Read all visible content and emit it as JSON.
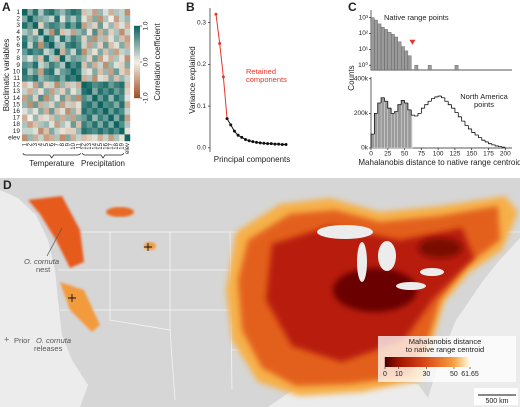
{
  "chart_data": [
    {
      "type": "heatmap",
      "letter": "A",
      "ylabel": "Bioclimatic variables",
      "colorbar_label": "Correlation coefficient",
      "categories": [
        "1",
        "2",
        "3",
        "4",
        "5",
        "6",
        "7",
        "8",
        "9",
        "10",
        "11",
        "12",
        "13",
        "14",
        "15",
        "16",
        "17",
        "18",
        "19",
        "elev"
      ],
      "groups": [
        "Temperature",
        "Precipitation"
      ],
      "clim": [
        -1,
        1
      ],
      "cticks": [
        {
          "value": 1,
          "label": "1.0"
        },
        {
          "value": 0,
          "label": "0.0"
        },
        {
          "value": -1,
          "label": "-1.0"
        }
      ],
      "colormap": [
        "#9c4f1f",
        "#f3efe8",
        "#0d6460"
      ],
      "values": [
        [
          1,
          0.5,
          0.9,
          0.3,
          0.8,
          0.9,
          0.6,
          0.4,
          0.7,
          0.9,
          0.8,
          -0.3,
          0.2,
          -0.5,
          0.4,
          0.1,
          -0.4,
          0.3,
          0.2,
          -0.6
        ],
        [
          0.5,
          1,
          0.6,
          0.5,
          0.4,
          0.2,
          0.9,
          0.1,
          0.6,
          0.3,
          0.7,
          0.1,
          -0.4,
          0.5,
          -0.6,
          0.3,
          0.0,
          -0.5,
          0.2,
          0.4
        ],
        [
          0.9,
          0.6,
          1,
          -0.2,
          0.6,
          0.8,
          0.7,
          0.5,
          0.9,
          0.6,
          0.9,
          -0.5,
          0.3,
          -0.2,
          0.6,
          -0.1,
          0.4,
          -0.3,
          0.1,
          -0.4
        ],
        [
          0.3,
          0.5,
          -0.2,
          1,
          0.3,
          -0.6,
          0.8,
          -0.3,
          0.2,
          -0.5,
          0.4,
          0.6,
          -0.1,
          0.7,
          -0.4,
          0.5,
          -0.2,
          0.3,
          -0.6,
          0.2
        ],
        [
          0.8,
          0.4,
          0.6,
          0.3,
          1,
          0.7,
          0.2,
          0.9,
          0.4,
          0.8,
          0.6,
          -0.2,
          0.5,
          -0.6,
          0.3,
          -0.4,
          0.1,
          0.4,
          -0.3,
          -0.5
        ],
        [
          0.9,
          0.2,
          0.8,
          -0.6,
          0.7,
          1,
          0.4,
          0.3,
          0.8,
          0.9,
          0.7,
          0.2,
          -0.5,
          0.4,
          -0.2,
          0.6,
          -0.3,
          0.1,
          0.5,
          -0.4
        ],
        [
          0.6,
          0.9,
          0.7,
          0.8,
          0.2,
          0.4,
          1,
          -0.4,
          0.6,
          0.2,
          0.8,
          -0.6,
          0.3,
          -0.1,
          0.5,
          -0.3,
          0.4,
          -0.5,
          0.2,
          0.3
        ],
        [
          0.4,
          0.1,
          0.5,
          -0.3,
          0.9,
          0.3,
          -0.4,
          1,
          0.3,
          0.6,
          0.5,
          0.4,
          -0.2,
          0.6,
          -0.5,
          0.1,
          -0.4,
          0.3,
          -0.1,
          -0.6
        ],
        [
          0.7,
          0.6,
          0.9,
          0.2,
          0.4,
          0.8,
          0.6,
          0.3,
          1,
          0.7,
          0.9,
          -0.3,
          0.5,
          -0.4,
          0.2,
          -0.6,
          0.4,
          0.1,
          -0.2,
          0.5
        ],
        [
          0.9,
          0.3,
          0.6,
          -0.5,
          0.8,
          0.9,
          0.2,
          0.6,
          0.7,
          1,
          0.8,
          0.2,
          -0.1,
          0.5,
          -0.3,
          0.4,
          -0.5,
          0.6,
          -0.2,
          -0.4
        ],
        [
          0.8,
          0.7,
          0.9,
          0.4,
          0.6,
          0.7,
          0.8,
          0.5,
          0.9,
          0.8,
          1,
          -0.4,
          0.3,
          -0.6,
          0.1,
          -0.2,
          0.5,
          -0.3,
          0.4,
          0.2
        ],
        [
          -0.3,
          0.1,
          -0.5,
          0.6,
          -0.2,
          0.2,
          -0.6,
          0.4,
          -0.3,
          0.2,
          -0.4,
          1,
          0.9,
          0.7,
          0.8,
          0.9,
          0.6,
          0.8,
          0.9,
          -0.3
        ],
        [
          0.2,
          -0.4,
          0.3,
          -0.1,
          0.5,
          -0.5,
          0.3,
          -0.2,
          0.5,
          -0.1,
          0.3,
          0.9,
          1,
          0.5,
          0.9,
          0.7,
          0.9,
          0.6,
          0.8,
          -0.2
        ],
        [
          -0.5,
          0.5,
          -0.2,
          0.7,
          -0.6,
          0.4,
          -0.1,
          0.6,
          -0.4,
          0.5,
          -0.6,
          0.7,
          0.5,
          1,
          0.6,
          0.9,
          0.4,
          0.9,
          0.7,
          0.1
        ],
        [
          0.4,
          -0.6,
          0.6,
          -0.4,
          0.3,
          -0.2,
          0.5,
          -0.5,
          0.2,
          -0.3,
          0.1,
          0.8,
          0.9,
          0.6,
          1,
          0.7,
          0.8,
          0.5,
          0.9,
          -0.4
        ],
        [
          0.1,
          0.3,
          -0.1,
          0.5,
          -0.4,
          0.6,
          -0.3,
          0.1,
          -0.6,
          0.4,
          -0.2,
          0.9,
          0.7,
          0.9,
          0.7,
          1,
          0.6,
          0.9,
          0.7,
          0.2
        ],
        [
          -0.4,
          0.0,
          0.4,
          -0.2,
          0.1,
          -0.3,
          0.4,
          -0.4,
          0.4,
          -0.5,
          0.5,
          0.6,
          0.9,
          0.4,
          0.8,
          0.6,
          1,
          0.5,
          0.9,
          -0.5
        ],
        [
          0.3,
          -0.5,
          -0.3,
          0.3,
          0.4,
          0.1,
          -0.5,
          0.3,
          0.1,
          0.6,
          -0.3,
          0.8,
          0.6,
          0.9,
          0.5,
          0.9,
          0.5,
          1,
          0.7,
          0.3
        ],
        [
          0.2,
          0.2,
          0.1,
          -0.6,
          -0.3,
          0.5,
          0.2,
          -0.1,
          -0.2,
          -0.2,
          0.4,
          0.9,
          0.8,
          0.7,
          0.9,
          0.7,
          0.9,
          0.7,
          1,
          -0.1
        ],
        [
          -0.6,
          0.4,
          -0.4,
          0.2,
          -0.5,
          -0.4,
          0.3,
          -0.6,
          0.5,
          -0.4,
          0.2,
          -0.3,
          -0.2,
          0.1,
          -0.4,
          0.2,
          -0.5,
          0.3,
          -0.1,
          1
        ]
      ]
    },
    {
      "type": "line",
      "letter": "B",
      "ylabel": "Variance explained",
      "xlabel": "Principal components",
      "annotation": [
        "Retained",
        "components"
      ],
      "annotation_color": "#e8352a",
      "values": [
        0.32,
        0.25,
        0.17,
        0.07,
        0.055,
        0.04,
        0.03,
        0.025,
        0.02,
        0.017,
        0.015,
        0.013,
        0.012,
        0.011,
        0.01,
        0.01,
        0.009,
        0.009,
        0.008,
        0.008
      ],
      "point_colors": [
        "#e8352a",
        "#e8352a",
        "#e8352a",
        "#111",
        "#111",
        "#111",
        "#111",
        "#111",
        "#111",
        "#111",
        "#111",
        "#111",
        "#111",
        "#111",
        "#111",
        "#111",
        "#111",
        "#111",
        "#111",
        "#111"
      ],
      "ylim": [
        -0.01,
        0.335
      ],
      "yticks": [
        {
          "value": 0,
          "label": "0.0"
        },
        0.1,
        0.2,
        0.3
      ]
    },
    {
      "type": "histogram",
      "letter": "C",
      "log_scale": true,
      "annotation": [
        "Native range points"
      ],
      "color": "#9a9a9a",
      "bins": [
        0,
        5,
        10,
        15,
        20,
        25,
        30,
        35,
        40,
        45,
        50,
        55,
        60,
        65,
        70,
        75,
        80,
        85,
        90,
        95,
        100,
        105,
        110,
        115,
        120,
        125,
        130,
        135,
        140,
        145,
        150,
        155,
        160,
        165,
        170,
        175,
        180,
        185,
        190,
        195,
        200
      ],
      "values": [
        1000,
        700,
        400,
        250,
        180,
        120,
        90,
        60,
        30,
        15,
        8,
        4,
        0,
        1,
        0,
        0,
        0,
        1,
        0,
        0,
        0,
        0,
        0,
        0,
        0,
        1,
        0,
        0,
        0,
        0,
        0,
        0,
        0,
        0,
        0,
        0,
        0,
        0,
        0,
        0
      ],
      "threshold": 61.65,
      "threshold_color": "#e8352a",
      "xlim": [
        0,
        210
      ],
      "ylim": [
        0.5,
        3000
      ],
      "yticks": [
        {
          "value": 1,
          "label": "10⁰"
        },
        {
          "value": 10,
          "label": "10¹"
        },
        {
          "value": 100,
          "label": "10²"
        },
        {
          "value": 1000,
          "label": "10³"
        }
      ]
    },
    {
      "type": "histogram",
      "ylabel": "Counts",
      "xlabel": "Mahalanobis distance to native range centroid",
      "annotation": [
        "North America",
        "points"
      ],
      "color": "#9a9a9a",
      "bins": [
        0,
        5,
        10,
        15,
        20,
        25,
        30,
        35,
        40,
        45,
        50,
        55,
        60,
        65,
        70,
        75,
        80,
        85,
        90,
        95,
        100,
        105,
        110,
        115,
        120,
        125,
        130,
        135,
        140,
        145,
        150,
        155,
        160,
        165,
        170,
        175,
        180,
        185,
        190,
        195,
        200
      ],
      "values": [
        80000,
        200000,
        260000,
        290000,
        270000,
        230000,
        200000,
        210000,
        250000,
        275000,
        260000,
        220000,
        190000,
        185000,
        200000,
        230000,
        250000,
        270000,
        285000,
        295000,
        300000,
        290000,
        270000,
        250000,
        230000,
        205000,
        180000,
        155000,
        130000,
        110000,
        90000,
        75000,
        60000,
        45000,
        35000,
        25000,
        18000,
        12000,
        8000,
        5000
      ],
      "xlim": [
        0,
        210
      ],
      "ylim": [
        0,
        410000
      ],
      "xticks": [
        0,
        25,
        50,
        75,
        100,
        125,
        150,
        175,
        200
      ],
      "yticks": [
        {
          "value": 0,
          "label": "0k"
        },
        {
          "value": 200000,
          "label": "200k"
        },
        {
          "value": 400000,
          "label": "400k"
        }
      ]
    },
    {
      "type": "map",
      "letter": "D",
      "nest_label": [
        "O. cornuta",
        "nest"
      ],
      "release_label": [
        "Prior",
        "O. cornuta",
        "releases"
      ],
      "scale_bar": "500 km",
      "legend": {
        "title": [
          "Mahalanobis distance",
          "to native range centroid"
        ],
        "ticks": [
          0,
          10,
          30,
          50,
          61.65
        ],
        "colors": [
          "#4a0000",
          "#a01200",
          "#dd4a1a",
          "#f4a040",
          "#fffbe8"
        ]
      }
    }
  ]
}
